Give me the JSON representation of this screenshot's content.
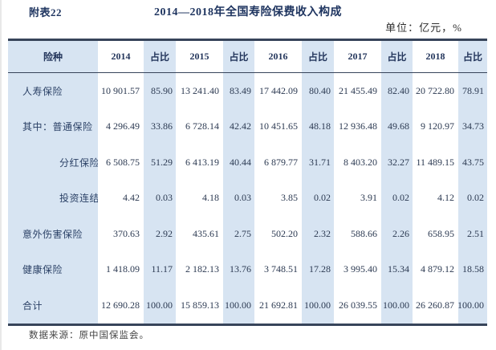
{
  "page": {
    "appendix_label": "附表22",
    "title": "2014—2018年全国寿险保费收入构成",
    "unit": "单位：亿元，%",
    "source": "数据来源：原中国保监会。"
  },
  "table": {
    "columns": [
      "险种",
      "2014",
      "占比",
      "2015",
      "占比",
      "2016",
      "占比",
      "2017",
      "占比",
      "2018",
      "占比"
    ],
    "rows": [
      {
        "label": "人寿保险",
        "indent": false,
        "cells": [
          "10 901.57",
          "85.90",
          "13 241.40",
          "83.49",
          "17 442.09",
          "80.40",
          "21 455.49",
          "82.40",
          "20 722.80",
          "78.91"
        ]
      },
      {
        "label": "其中：普通保险",
        "indent": false,
        "cells": [
          "4 296.49",
          "33.86",
          "6 728.14",
          "42.42",
          "10 451.65",
          "48.18",
          "12 936.48",
          "49.68",
          "9 120.97",
          "34.73"
        ]
      },
      {
        "label": "分红保险",
        "indent": true,
        "cells": [
          "6 508.75",
          "51.29",
          "6 413.19",
          "40.44",
          "6 879.77",
          "31.71",
          "8 403.20",
          "32.27",
          "11 489.15",
          "43.75"
        ]
      },
      {
        "label": "投资连结保险",
        "indent": true,
        "cells": [
          "4.42",
          "0.03",
          "4.18",
          "0.03",
          "3.85",
          "0.02",
          "3.91",
          "0.02",
          "4.12",
          "0.02"
        ]
      },
      {
        "label": "意外伤害保险",
        "indent": false,
        "cells": [
          "370.63",
          "2.92",
          "435.61",
          "2.75",
          "502.20",
          "2.32",
          "588.66",
          "2.26",
          "658.95",
          "2.51"
        ]
      },
      {
        "label": "健康保险",
        "indent": false,
        "cells": [
          "1 418.09",
          "11.17",
          "2 182.13",
          "13.76",
          "3 748.51",
          "17.28",
          "3 995.40",
          "15.34",
          "4 879.12",
          "18.58"
        ]
      },
      {
        "label": "合计",
        "indent": false,
        "cells": [
          "12 690.28",
          "100.00",
          "15 859.13",
          "100.00",
          "21 692.81",
          "100.00",
          "26 039.55",
          "100.00",
          "26 260.87",
          "100.00"
        ]
      }
    ]
  },
  "colors": {
    "stripe": "#d7e4f2",
    "title_navy": "#1f3560",
    "body_text": "#2c3a52",
    "border": "#37445a"
  }
}
